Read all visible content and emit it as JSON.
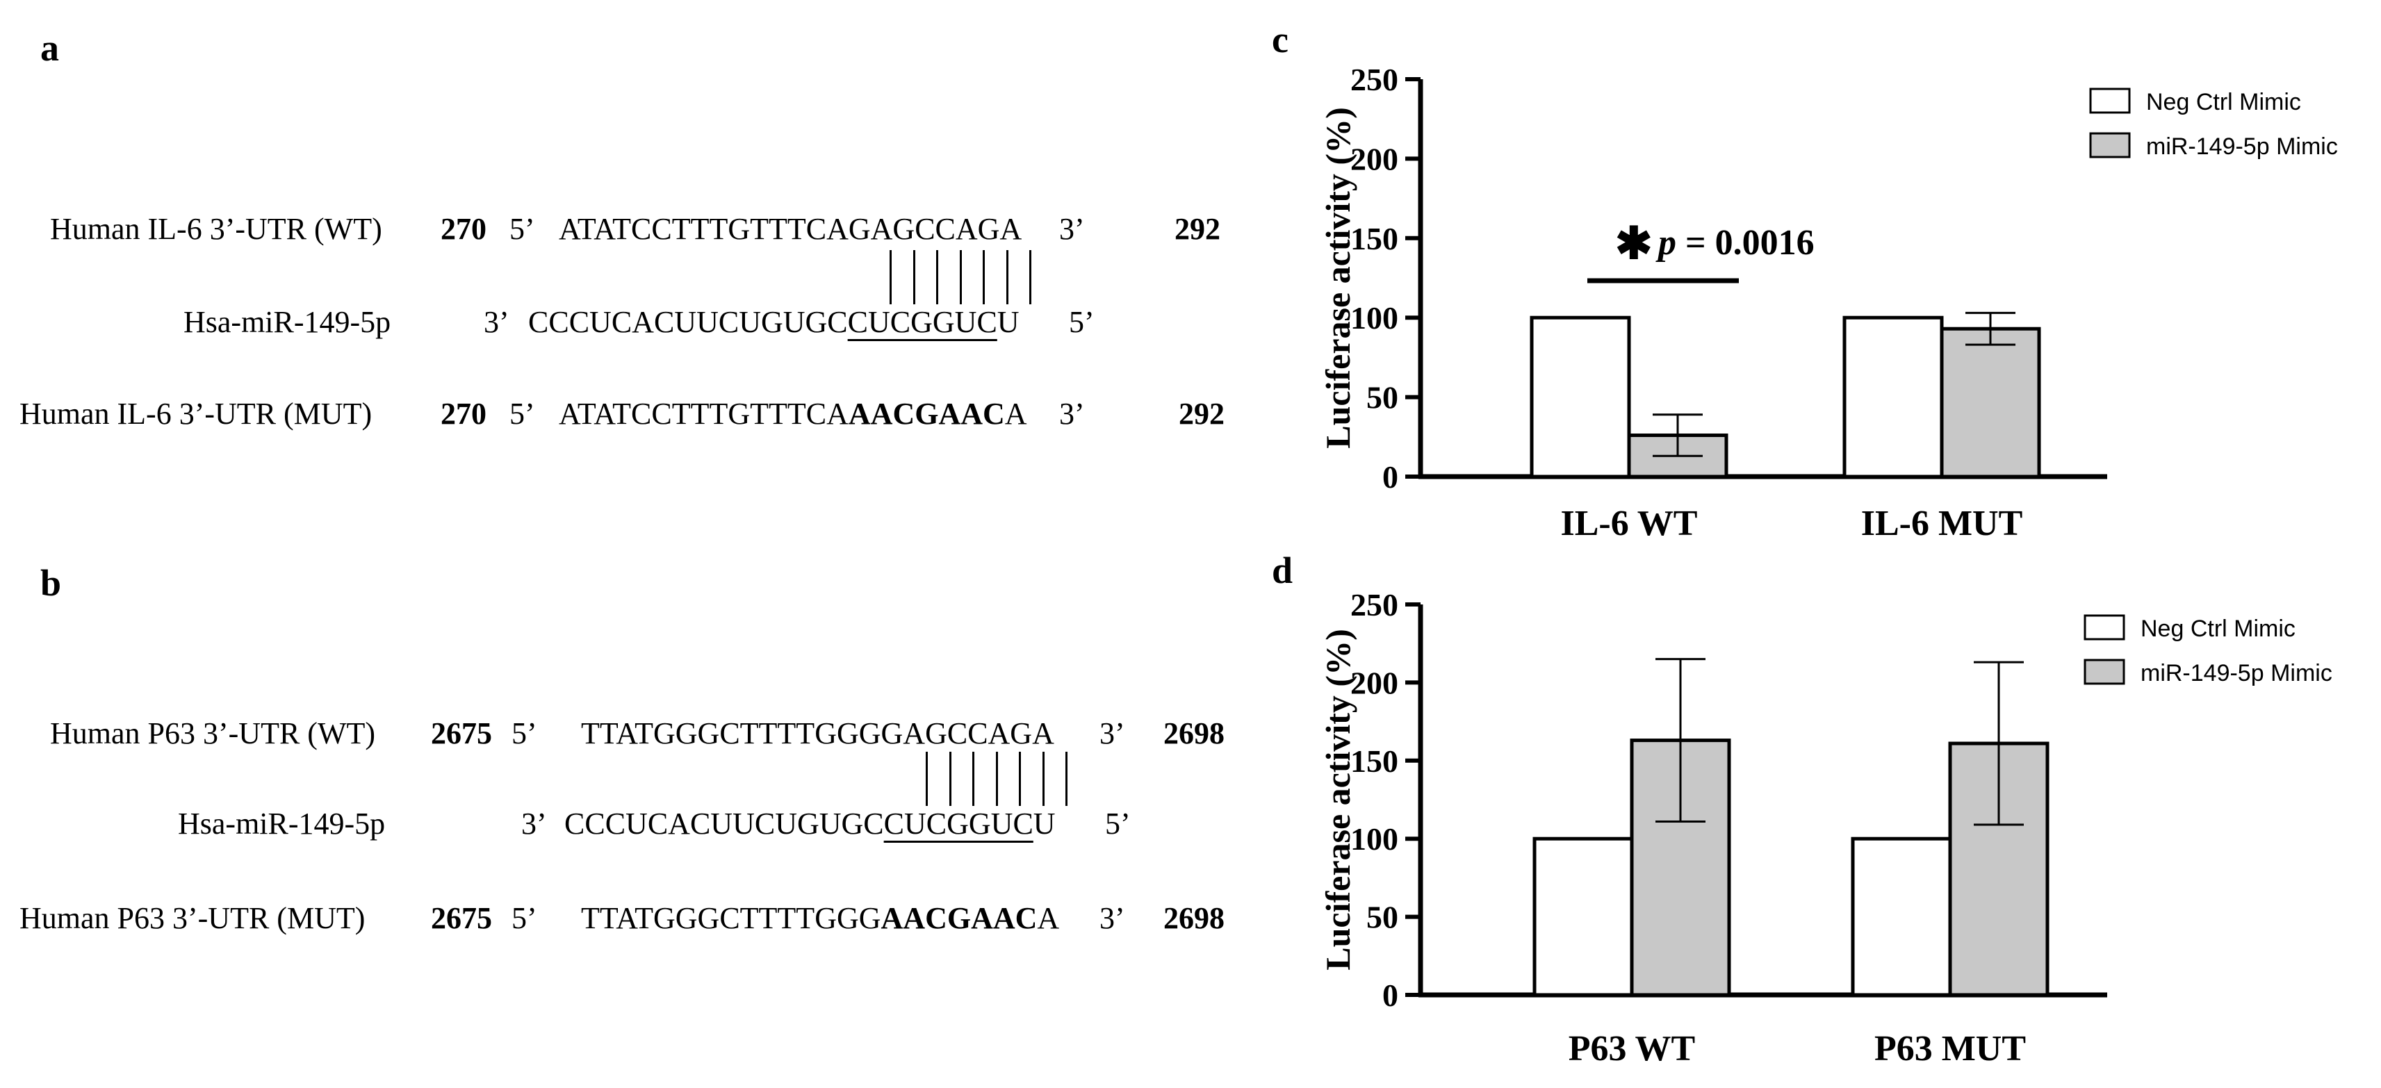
{
  "panels": {
    "a": "a",
    "b": "b",
    "c": "c",
    "d": "d"
  },
  "sequence_a": {
    "wt_label": "Human IL-6 3’-UTR (WT)",
    "wt_start": "270",
    "wt_5": "5’",
    "wt_seq": "ATATCCTTTGTTTCAGAGCCAGA",
    "wt_3": "3’",
    "wt_end": "292",
    "mir_label": "Hsa-miR-149-5p",
    "mir_3": "3’",
    "mir_seq_pre": "CCCUCACUUCUGUGC",
    "mir_seq_seed": "CUCGGUC",
    "mir_seq_post": "U",
    "mir_5": "5’",
    "mut_label": "Human IL-6 3’-UTR (MUT)",
    "mut_start": "270",
    "mut_5": "5’",
    "mut_seq_pre": "ATATCCTTTGTTTCA",
    "mut_seq_bold": "AACGAAC",
    "mut_seq_post": "A",
    "mut_3": "3’",
    "mut_end": "292"
  },
  "sequence_b": {
    "wt_label": "Human P63 3’-UTR (WT)",
    "wt_start": "2675",
    "wt_5": "5’",
    "wt_seq": "TTATGGGCTTTTGGGGAGCCAGA",
    "wt_3": "3’",
    "wt_end": "2698",
    "mir_label": "Hsa-miR-149-5p",
    "mir_3": "3’",
    "mir_seq_pre": "CCCUCACUUCUGUGC",
    "mir_seq_seed": "CUCGGUC",
    "mir_seq_post": "U",
    "mir_5": "5’",
    "mut_label": "Human P63 3’-UTR (MUT)",
    "mut_start": "2675",
    "mut_5": "5’",
    "mut_seq_pre": "TTATGGGCTTTTGGG",
    "mut_seq_bold": "AACGAAC",
    "mut_seq_post": "A",
    "mut_3": "3’",
    "mut_end": "2698"
  },
  "chart_data": [
    {
      "id": "c",
      "type": "bar",
      "categories": [
        "IL-6 WT",
        "IL-6 MUT"
      ],
      "series": [
        {
          "name": "Neg Ctrl Mimic",
          "values": [
            100,
            100
          ],
          "errors": [
            0,
            0
          ],
          "color": "#ffffff"
        },
        {
          "name": "miR-149-5p Mimic",
          "values": [
            26,
            93
          ],
          "errors": [
            13,
            10
          ],
          "color": "#c8c8c8"
        }
      ],
      "ylabel": "Luciferase activity (%)",
      "ylim": [
        0,
        250
      ],
      "yticks": [
        0,
        50,
        100,
        150,
        200,
        250
      ],
      "legend_position": "top-right",
      "annotation": {
        "star": "✱",
        "p_label": "p",
        "p_text": " = 0.0016"
      }
    },
    {
      "id": "d",
      "type": "bar",
      "categories": [
        "P63 WT",
        "P63 MUT"
      ],
      "series": [
        {
          "name": "Neg Ctrl Mimic",
          "values": [
            100,
            100
          ],
          "errors": [
            0,
            0
          ],
          "color": "#ffffff"
        },
        {
          "name": "miR-149-5p Mimic",
          "values": [
            163,
            161
          ],
          "errors": [
            52,
            52
          ],
          "color": "#c8c8c8"
        }
      ],
      "ylabel": "Luciferase activity (%)",
      "ylim": [
        0,
        250
      ],
      "yticks": [
        0,
        50,
        100,
        150,
        200,
        250
      ],
      "legend_position": "top-right"
    }
  ]
}
